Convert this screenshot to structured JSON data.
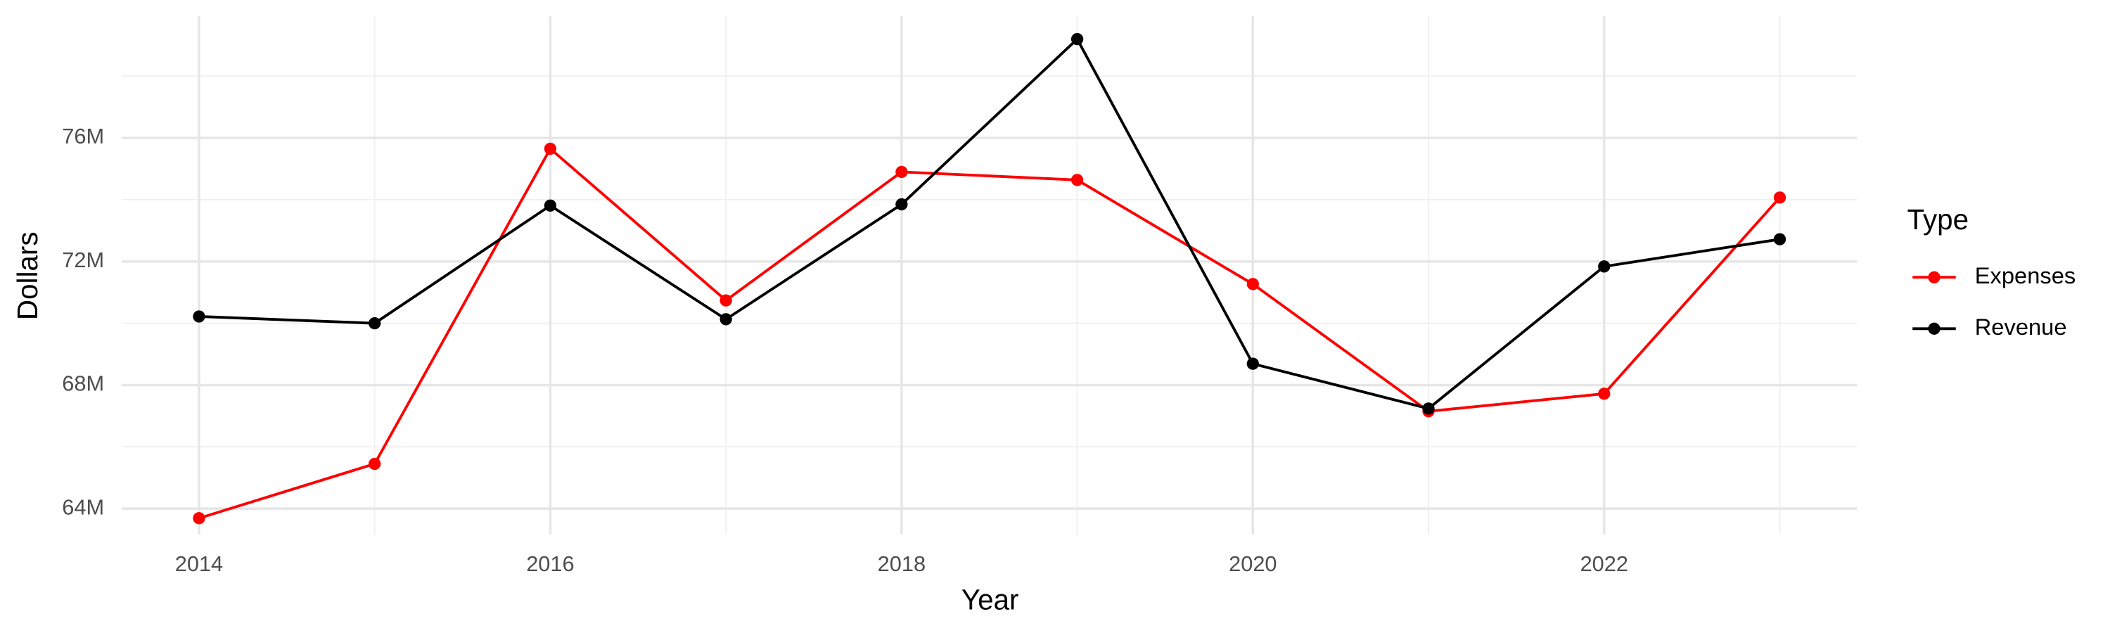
{
  "chart_data": {
    "type": "line",
    "x_label": "Year",
    "y_label": "Dollars",
    "x": [
      2014,
      2015,
      2016,
      2017,
      2018,
      2019,
      2020,
      2021,
      2022,
      2023
    ],
    "series": [
      {
        "name": "Expenses",
        "color": "#ff0000",
        "values": [
          63690000,
          65450000,
          75650000,
          70740000,
          74900000,
          74640000,
          71270000,
          67150000,
          67720000,
          74070000
        ]
      },
      {
        "name": "Revenue",
        "color": "#000000",
        "values": [
          70220000,
          70000000,
          73810000,
          70130000,
          73850000,
          79200000,
          68690000,
          67240000,
          71840000,
          72720000
        ]
      }
    ],
    "xlim": [
      2013.56,
      2023.44
    ],
    "xticks": [
      2014,
      2016,
      2018,
      2020,
      2022
    ],
    "ylim": [
      63170000,
      79940000
    ],
    "yticks": [
      {
        "value": 64000000,
        "label": "64M"
      },
      {
        "value": 68000000,
        "label": "68M"
      },
      {
        "value": 72000000,
        "label": "72M"
      },
      {
        "value": 76000000,
        "label": "76M"
      }
    ],
    "grid": true,
    "legend_title": "Type",
    "legend_position": "right"
  }
}
